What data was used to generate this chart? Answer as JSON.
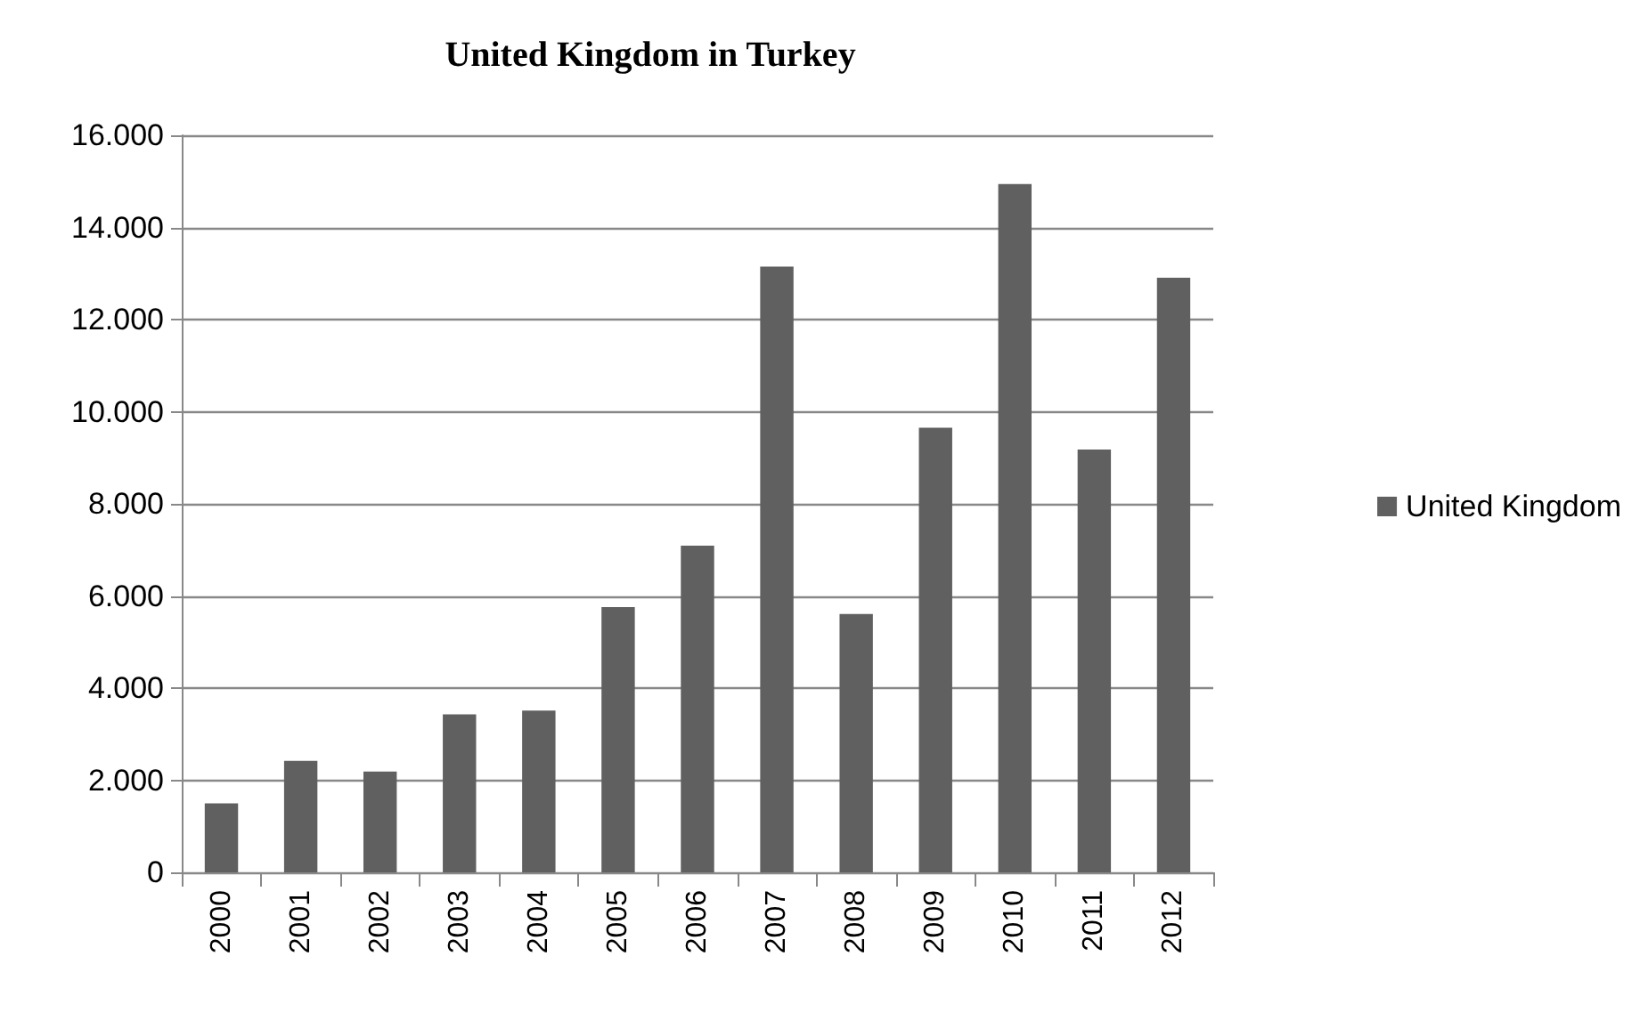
{
  "chart_data": {
    "type": "bar",
    "title": "United Kingdom in Turkey",
    "categories": [
      "2000",
      "2001",
      "2002",
      "2003",
      "2004",
      "2005",
      "2006",
      "2007",
      "2008",
      "2009",
      "2010",
      "2011",
      "2012"
    ],
    "series": [
      {
        "name": "United Kingdom",
        "color": "#606060",
        "values": [
          1500,
          2420,
          2190,
          3430,
          3510,
          5760,
          7090,
          13150,
          5610,
          9650,
          14940,
          9180,
          12910
        ]
      }
    ],
    "ylim": [
      0,
      16000
    ],
    "yticks": [
      {
        "value": 0,
        "label": "0"
      },
      {
        "value": 2000,
        "label": "2.000"
      },
      {
        "value": 4000,
        "label": "4.000"
      },
      {
        "value": 6000,
        "label": "6.000"
      },
      {
        "value": 8000,
        "label": "8.000"
      },
      {
        "value": 10000,
        "label": "10.000"
      },
      {
        "value": 12000,
        "label": "12.000"
      },
      {
        "value": 14000,
        "label": "14.000"
      },
      {
        "value": 16000,
        "label": "16.000"
      }
    ],
    "grid": "y",
    "legend": "right"
  }
}
